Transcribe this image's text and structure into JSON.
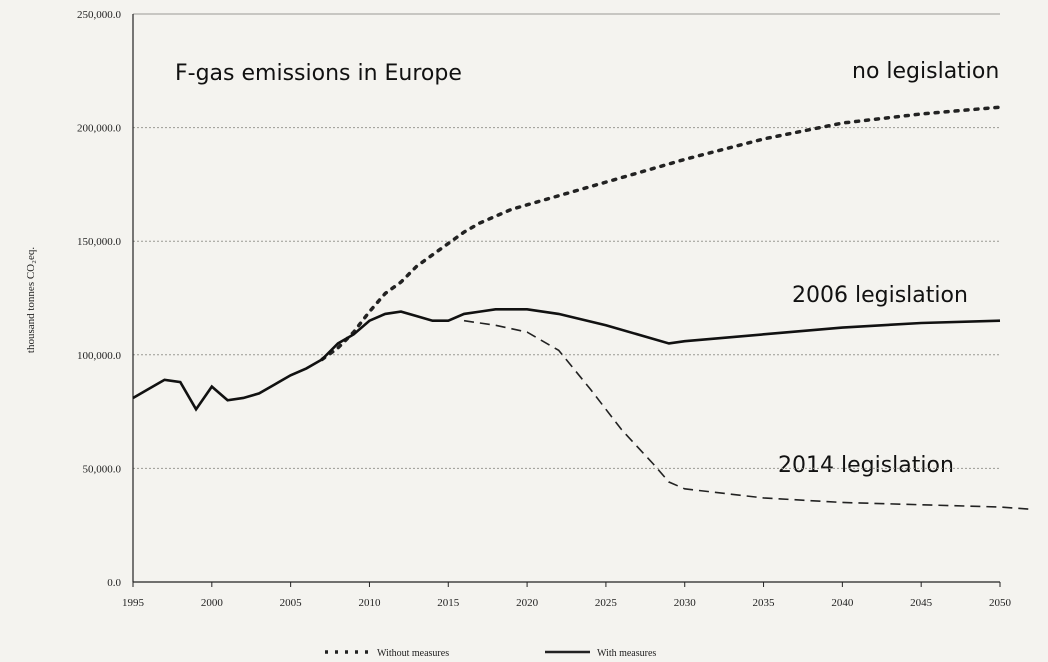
{
  "chart_data": {
    "type": "line",
    "title": "F-gas emissions in Europe",
    "y_label": "thousand tonnes CO₂eq.",
    "xlim": [
      1995,
      2050
    ],
    "xticks": [
      1995,
      2000,
      2005,
      2010,
      2015,
      2020,
      2025,
      2030,
      2035,
      2040,
      2045,
      2050
    ],
    "ylim": [
      0,
      250000
    ],
    "yticks": [
      {
        "value": 0,
        "label": "0.0"
      },
      {
        "value": 50000,
        "label": "50,000.0"
      },
      {
        "value": 100000,
        "label": "100,000.0"
      },
      {
        "value": 150000,
        "label": "150,000.0"
      },
      {
        "value": 200000,
        "label": "200,000.0"
      },
      {
        "value": 250000,
        "label": "250,000.0"
      }
    ],
    "grid": true,
    "series": [
      {
        "name": "no legislation",
        "color": "#222222",
        "style": "dotted",
        "x": [
          2007,
          2008,
          2009,
          2010,
          2011,
          2012,
          2013,
          2014,
          2015,
          2016,
          2017,
          2018,
          2019,
          2020,
          2022,
          2025,
          2030,
          2035,
          2040,
          2045,
          2050
        ],
        "values": [
          98000,
          103000,
          110000,
          119000,
          127000,
          132000,
          139000,
          144000,
          149000,
          154000,
          158000,
          161000,
          164000,
          166000,
          170000,
          176000,
          186000,
          195000,
          202000,
          206000,
          209000
        ]
      },
      {
        "name": "2006 legislation",
        "color": "#111111",
        "style": "solid",
        "x": [
          1995,
          1996,
          1997,
          1998,
          1999,
          2000,
          2001,
          2002,
          2003,
          2004,
          2005,
          2006,
          2007,
          2008,
          2009,
          2010,
          2011,
          2012,
          2013,
          2014,
          2015,
          2016,
          2017,
          2018,
          2019,
          2020,
          2022,
          2025,
          2029,
          2030,
          2035,
          2040,
          2045,
          2050
        ],
        "values": [
          81000,
          85000,
          89000,
          88000,
          76000,
          86000,
          80000,
          81000,
          83000,
          87000,
          91000,
          94000,
          98000,
          105000,
          109000,
          115000,
          118000,
          119000,
          117000,
          115000,
          115000,
          118000,
          119000,
          120000,
          120000,
          120000,
          118000,
          113000,
          105000,
          106000,
          109000,
          112000,
          114000,
          115000
        ]
      },
      {
        "name": "2014 legislation",
        "color": "#222222",
        "style": "dashed",
        "x": [
          2016,
          2018,
          2020,
          2022,
          2024,
          2026,
          2028,
          2029,
          2030,
          2035,
          2040,
          2045,
          2050,
          2052
        ],
        "values": [
          115000,
          113000,
          110000,
          102000,
          85000,
          67000,
          52000,
          44000,
          41000,
          37000,
          35000,
          34000,
          33000,
          32000
        ]
      }
    ],
    "legend": [
      {
        "label": "Without measures",
        "style": "dotted"
      },
      {
        "label": "With measures",
        "style": "solid"
      }
    ]
  }
}
